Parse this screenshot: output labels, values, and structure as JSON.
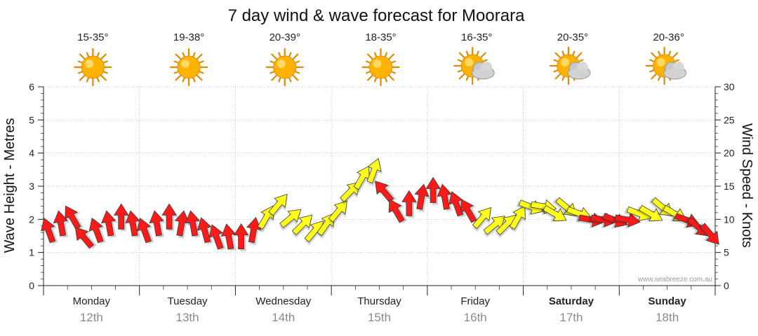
{
  "chart_data": {
    "type": "line",
    "title": "7 day wind & wave forecast for Moorara",
    "ylabel_left": "Wave Height - Metres",
    "ylabel_right": "Wind Speed - Knots",
    "ylim_left": [
      0,
      6
    ],
    "ylim_right": [
      0,
      30
    ],
    "yticks_left": [
      "0",
      "1",
      "2",
      "3",
      "4",
      "5",
      "6"
    ],
    "yticks_right": [
      "0",
      "5",
      "10",
      "15",
      "20",
      "25",
      "30"
    ],
    "watermark": "www.seabreeze.com.au",
    "colors": {
      "strong_wind": "#ff1a1a",
      "light_wind": "#ffff1a",
      "outline": "#3a3a3a",
      "grid": "#b0b0b0",
      "sun": "#ffb300",
      "cloud": "#c8c8c8"
    },
    "days": [
      {
        "day": "Monday",
        "date": "12th",
        "temp": "15-35°",
        "weather": "sunny",
        "bold": false
      },
      {
        "day": "Tuesday",
        "date": "13th",
        "temp": "19-38°",
        "weather": "sunny",
        "bold": false
      },
      {
        "day": "Wednesday",
        "date": "14th",
        "temp": "20-39°",
        "weather": "sunny",
        "bold": false
      },
      {
        "day": "Thursday",
        "date": "15th",
        "temp": "18-35°",
        "weather": "sunny",
        "bold": false
      },
      {
        "day": "Friday",
        "date": "16th",
        "temp": "16-35°",
        "weather": "partly-cloudy",
        "bold": false
      },
      {
        "day": "Saturday",
        "date": "17th",
        "temp": "20-35°",
        "weather": "partly-cloudy",
        "bold": true
      },
      {
        "day": "Sunday",
        "date": "18th",
        "temp": "20-36°",
        "weather": "partly-cloudy",
        "bold": true
      }
    ],
    "wind_series": {
      "name": "Wind Speed - Knots",
      "time_days": [
        0.0,
        0.125,
        0.25,
        0.375,
        0.5,
        0.625,
        0.75,
        0.875,
        1.0,
        1.125,
        1.25,
        1.375,
        1.5,
        1.625,
        1.75,
        1.875,
        2.0,
        2.125,
        2.25,
        2.375,
        2.5,
        2.625,
        2.75,
        2.875,
        3.0,
        3.125,
        3.25,
        3.375,
        3.5,
        3.625,
        3.75,
        3.875,
        4.0,
        4.125,
        4.25,
        4.375,
        4.5,
        4.625,
        4.75,
        4.875,
        5.0,
        5.125,
        5.25,
        5.375,
        5.5,
        5.625,
        5.75,
        5.875,
        6.0,
        6.125,
        6.25,
        6.375,
        6.5,
        6.625,
        6.75,
        6.875
      ],
      "knots": [
        8,
        9,
        10,
        7,
        8,
        9,
        10,
        9,
        8,
        9,
        10,
        9,
        9,
        8,
        7,
        7,
        7,
        8,
        10,
        12,
        10,
        9,
        8,
        9,
        11,
        14,
        16,
        17,
        14,
        11,
        12,
        13,
        14,
        13,
        12,
        11,
        10,
        9,
        9,
        10,
        12,
        12,
        11,
        12,
        11,
        10,
        10,
        10,
        10,
        11,
        11,
        12,
        11,
        10,
        9,
        8
      ],
      "direction_deg": [
        340,
        350,
        330,
        320,
        340,
        350,
        0,
        350,
        340,
        350,
        0,
        10,
        350,
        345,
        340,
        350,
        0,
        10,
        30,
        40,
        50,
        45,
        40,
        35,
        40,
        45,
        30,
        20,
        320,
        330,
        0,
        10,
        0,
        350,
        340,
        330,
        40,
        50,
        45,
        30,
        110,
        100,
        120,
        130,
        110,
        100,
        100,
        110,
        100,
        110,
        120,
        130,
        120,
        110,
        130,
        140
      ]
    }
  }
}
